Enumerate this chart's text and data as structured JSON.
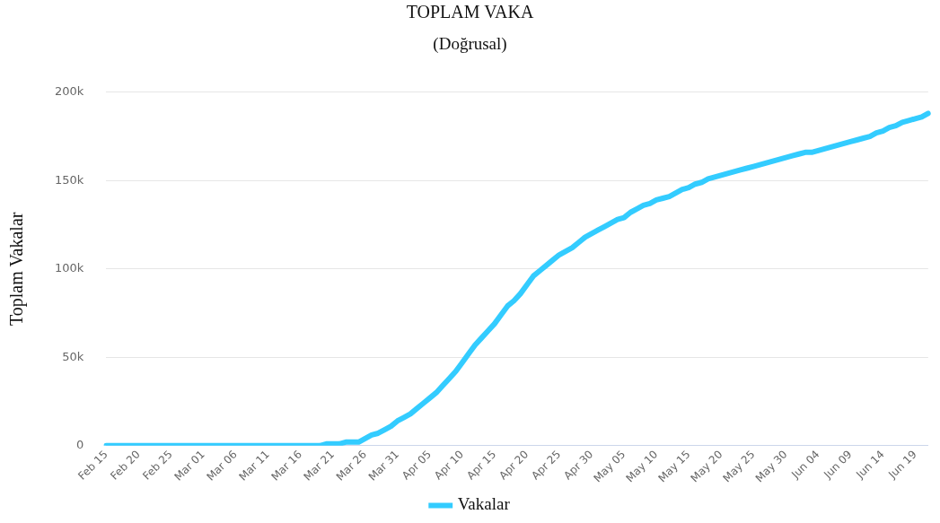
{
  "chart_data": {
    "type": "line",
    "title": "TOPLAM VAKA",
    "subtitle": "(Doğrusal)",
    "ylabel": "Toplam Vakalar",
    "categories": [
      "Feb 15",
      null,
      null,
      null,
      null,
      "Feb 20",
      null,
      null,
      null,
      null,
      "Feb 25",
      null,
      null,
      null,
      null,
      "Mar 01",
      null,
      null,
      null,
      null,
      "Mar 06",
      null,
      null,
      null,
      null,
      "Mar 11",
      null,
      null,
      null,
      null,
      "Mar 16",
      null,
      null,
      null,
      null,
      "Mar 21",
      null,
      null,
      null,
      null,
      "Mar 26",
      null,
      null,
      null,
      null,
      "Mar 31",
      null,
      null,
      null,
      null,
      "Apr 05",
      null,
      null,
      null,
      null,
      "Apr 10",
      null,
      null,
      null,
      null,
      "Apr 15",
      null,
      null,
      null,
      null,
      "Apr 20",
      null,
      null,
      null,
      null,
      "Apr 25",
      null,
      null,
      null,
      null,
      "Apr 30",
      null,
      null,
      null,
      null,
      "May 05",
      null,
      null,
      null,
      null,
      "May 10",
      null,
      null,
      null,
      null,
      "May 15",
      null,
      null,
      null,
      null,
      "May 20",
      null,
      null,
      null,
      null,
      "May 25",
      null,
      null,
      null,
      null,
      "May 30",
      null,
      null,
      null,
      null,
      "Jun 04",
      null,
      null,
      null,
      null,
      "Jun 09",
      null,
      null,
      null,
      null,
      "Jun 14",
      null,
      null,
      null,
      null,
      "Jun 19",
      null,
      null
    ],
    "series": [
      {
        "name": "Vakalar",
        "color": "#33ccff",
        "values": [
          0,
          0,
          0,
          0,
          0,
          0,
          0,
          0,
          0,
          0,
          0,
          0,
          0,
          0,
          0,
          0,
          0,
          0,
          0,
          0,
          0,
          0,
          0,
          0,
          0,
          0,
          0,
          0,
          0,
          0,
          0,
          0,
          0,
          0,
          1000,
          1000,
          1000,
          2000,
          2000,
          2000,
          4000,
          6000,
          7000,
          9000,
          11000,
          14000,
          16000,
          18000,
          21000,
          24000,
          27000,
          30000,
          34000,
          38000,
          42000,
          47000,
          52000,
          57000,
          61000,
          65000,
          69000,
          74000,
          79000,
          82000,
          86000,
          91000,
          96000,
          99000,
          102000,
          105000,
          108000,
          110000,
          112000,
          115000,
          118000,
          120000,
          122000,
          124000,
          126000,
          128000,
          129000,
          132000,
          134000,
          136000,
          137000,
          139000,
          140000,
          141000,
          143000,
          145000,
          146000,
          148000,
          149000,
          151000,
          152000,
          153000,
          154000,
          155000,
          156000,
          157000,
          158000,
          159000,
          160000,
          161000,
          162000,
          163000,
          164000,
          165000,
          166000,
          166000,
          167000,
          168000,
          169000,
          170000,
          171000,
          172000,
          173000,
          174000,
          175000,
          177000,
          178000,
          180000,
          181000,
          183000,
          184000,
          185000,
          186000,
          188000
        ]
      }
    ],
    "ylim": [
      0,
      200000
    ],
    "yticks": [
      0,
      {
        "value": 50000,
        "label": "50k"
      },
      {
        "value": 100000,
        "label": "100k"
      },
      {
        "value": 150000,
        "label": "150k"
      },
      {
        "value": 200000,
        "label": "200k"
      }
    ],
    "grid": "y",
    "legend": "bottom",
    "marker": "none",
    "line_style": "solid"
  }
}
